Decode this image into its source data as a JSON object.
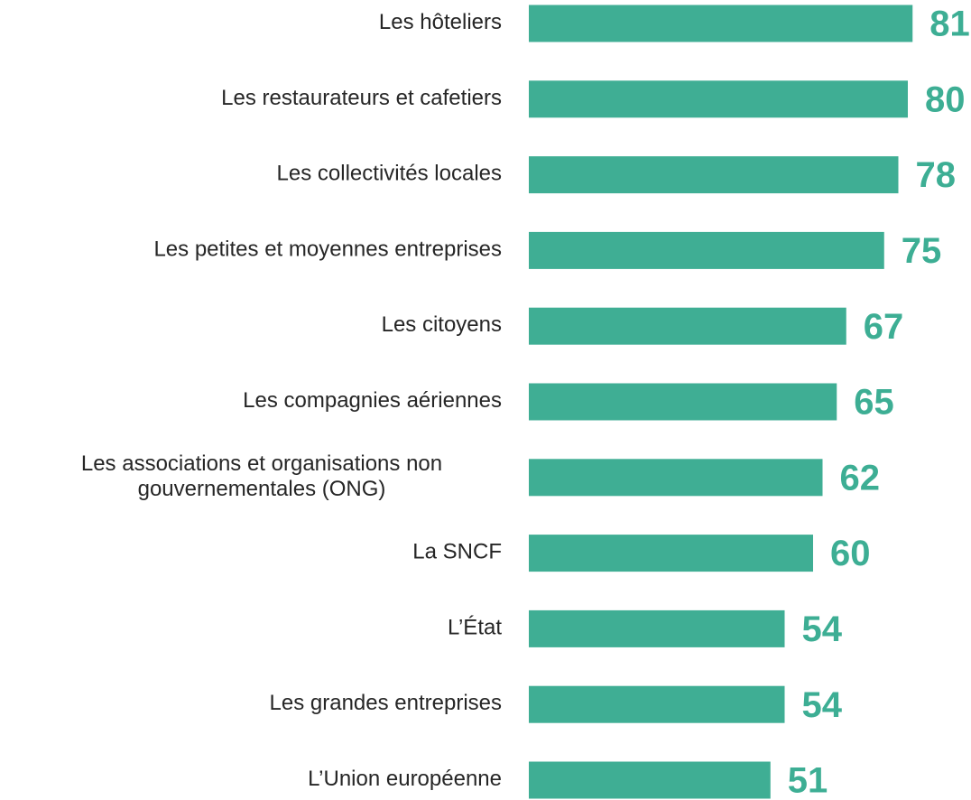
{
  "chart_data": {
    "type": "bar",
    "orientation": "horizontal",
    "categories": [
      "Les hôteliers",
      "Les restaurateurs et cafetiers",
      "Les collectivités locales",
      "Les petites et moyennes entreprises",
      "Les citoyens",
      "Les compagnies aériennes",
      "Les associations et organisations non\ngouvernementales (ONG)",
      "La SNCF",
      "L’État",
      "Les grandes entreprises",
      "L’Union européenne"
    ],
    "values": [
      81,
      80,
      78,
      75,
      67,
      65,
      62,
      60,
      54,
      54,
      51
    ],
    "color": "#3fae94"
  }
}
